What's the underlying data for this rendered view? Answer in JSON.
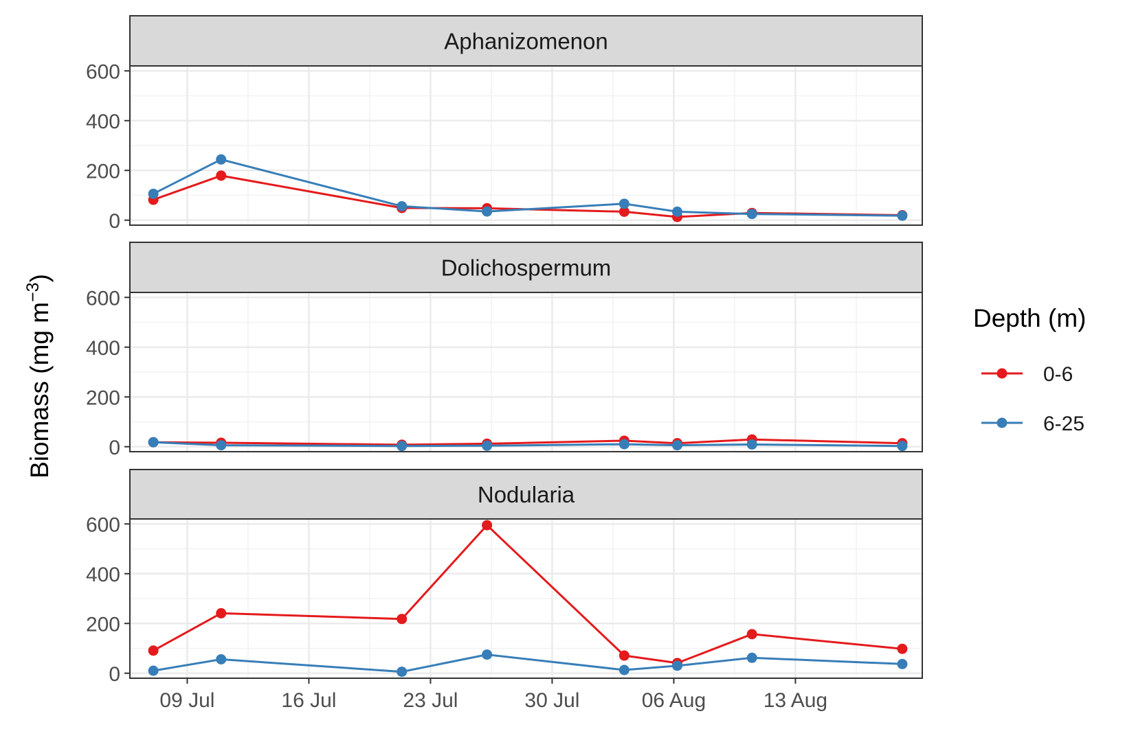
{
  "chart_data": {
    "type": "line",
    "facet_strip_labels": [
      "Aphanizomenon",
      "Dolichospermum",
      "Nodularia"
    ],
    "ylabel_main": "Biomass (mg m",
    "ylabel_sup": "−3",
    "ylabel_close": ")",
    "ylim": [
      -20,
      620
    ],
    "yticks": [
      0,
      200,
      400,
      600
    ],
    "ytick_labels": [
      "0",
      "200",
      "400",
      "600"
    ],
    "x_unit": "day of year",
    "xlim": [
      186.7,
      232.3
    ],
    "xticks": [
      190,
      197,
      204,
      211,
      218,
      225
    ],
    "xtick_labels": [
      "09 Jul",
      "16 Jul",
      "23 Jul",
      "30 Jul",
      "06 Aug",
      "13 Aug"
    ],
    "x": [
      188.05,
      191.95,
      202.35,
      207.25,
      215.15,
      218.2,
      222.5,
      231.15
    ],
    "legend": {
      "title": "Depth (m)",
      "position": "right",
      "entries": [
        {
          "label": "0-6",
          "color": "#e41a1c"
        },
        {
          "label": "6-25",
          "color": "#377eb8"
        }
      ]
    },
    "panels": [
      {
        "label": "Aphanizomenon",
        "series": [
          {
            "name": "0-6",
            "color": "#e41a1c",
            "values": [
              82,
              179,
              49,
              48,
              34,
              13,
              29,
              20
            ]
          },
          {
            "name": "6-25",
            "color": "#377eb8",
            "values": [
              106,
              244,
              56,
              35,
              66,
              34,
              25,
              18
            ]
          }
        ]
      },
      {
        "label": "Dolichospermum",
        "series": [
          {
            "name": "0-6",
            "color": "#e41a1c",
            "values": [
              18,
              16,
              8,
              12,
              24,
              14,
              29,
              14
            ]
          },
          {
            "name": "6-25",
            "color": "#377eb8",
            "values": [
              18,
              6,
              3,
              4,
              10,
              6,
              9,
              3
            ]
          }
        ]
      },
      {
        "label": "Nodularia",
        "series": [
          {
            "name": "0-6",
            "color": "#e41a1c",
            "values": [
              91,
              241,
              218,
              595,
              71,
              41,
              157,
              98
            ]
          },
          {
            "name": "6-25",
            "color": "#377eb8",
            "values": [
              10,
              56,
              6,
              75,
              13,
              30,
              62,
              37
            ]
          }
        ]
      }
    ]
  }
}
